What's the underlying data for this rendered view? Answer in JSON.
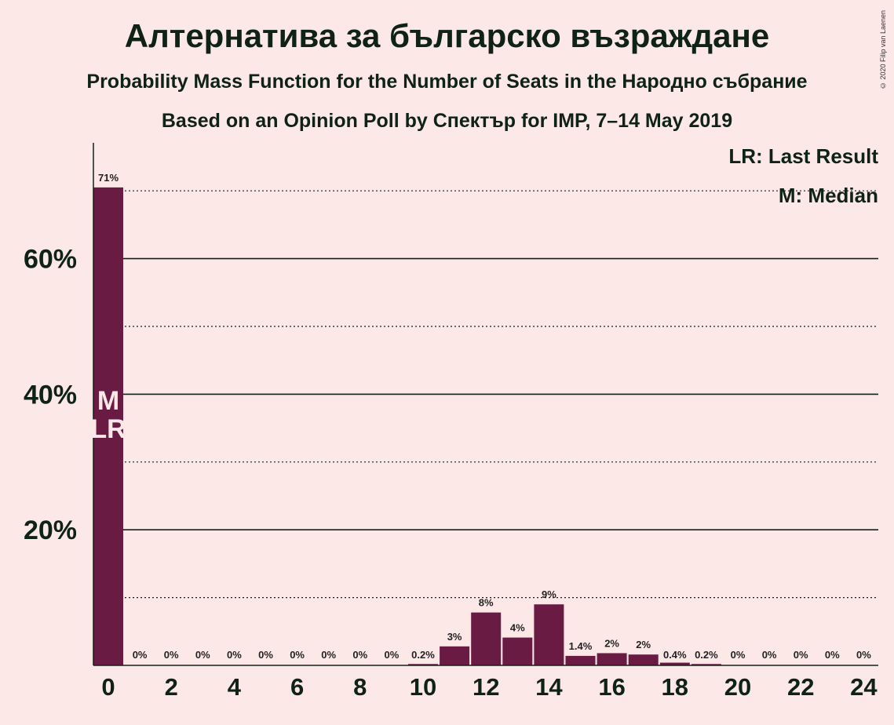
{
  "header": {
    "title": "Алтернатива за българско възраждане",
    "subtitle1": "Probability Mass Function for the Number of Seats in the Народно събрание",
    "subtitle2": "Based on an Opinion Poll by Спектър for IMP, 7–14 May 2019",
    "copyright": "© 2020 Filip van Laenen"
  },
  "legend": {
    "lr": "LR: Last Result",
    "m": "M: Median"
  },
  "colors": {
    "bar": "#6A1B44",
    "background": "#FDE8E8",
    "text": "#0f2216"
  },
  "chart_data": {
    "type": "bar",
    "title": "Алтернатива за българско възраждане",
    "xlabel": "",
    "ylabel": "",
    "x": [
      0,
      1,
      2,
      3,
      4,
      5,
      6,
      7,
      8,
      9,
      10,
      11,
      12,
      13,
      14,
      15,
      16,
      17,
      18,
      19,
      20,
      21,
      22,
      23,
      24
    ],
    "values": [
      70.5,
      0,
      0,
      0,
      0,
      0,
      0,
      0,
      0,
      0,
      0.2,
      2.8,
      7.8,
      4.1,
      9.0,
      1.4,
      1.8,
      1.6,
      0.4,
      0.2,
      0,
      0,
      0,
      0,
      0
    ],
    "data_labels": [
      "71%",
      "0%",
      "0%",
      "0%",
      "0%",
      "0%",
      "0%",
      "0%",
      "0%",
      "0%",
      "0.2%",
      "3%",
      "8%",
      "4%",
      "9%",
      "1.4%",
      "2%",
      "2%",
      "0.4%",
      "0.2%",
      "0%",
      "0%",
      "0%",
      "0%",
      "0%"
    ],
    "x_tick_labels": [
      "0",
      "2",
      "4",
      "6",
      "8",
      "10",
      "12",
      "14",
      "16",
      "18",
      "20",
      "22",
      "24"
    ],
    "y_tick_labels": [
      "20%",
      "40%",
      "60%"
    ],
    "ylim": [
      0,
      77
    ],
    "solid_gridlines": [
      20,
      40,
      60
    ],
    "dotted_gridlines": [
      10,
      30,
      50,
      70
    ],
    "median_seat": 0,
    "last_result_seat": 0,
    "median_marker": "M",
    "last_result_marker": "LR",
    "legend_position": "top-right"
  }
}
